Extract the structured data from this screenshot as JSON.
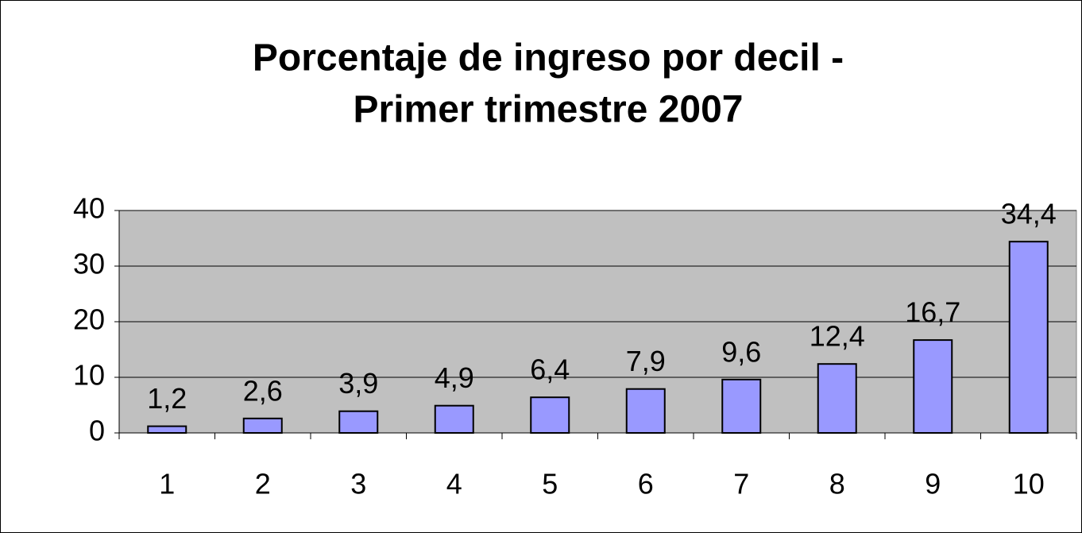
{
  "chart_data": {
    "type": "bar",
    "title": [
      "Porcentaje de ingreso por decil -",
      "Primer trimestre 2007"
    ],
    "categories": [
      "1",
      "2",
      "3",
      "4",
      "5",
      "6",
      "7",
      "8",
      "9",
      "10"
    ],
    "values": [
      1.2,
      2.6,
      3.9,
      4.9,
      6.4,
      7.9,
      9.6,
      12.4,
      16.7,
      34.4
    ],
    "value_labels": [
      "1,2",
      "2,6",
      "3,9",
      "4,9",
      "6,4",
      "7,9",
      "9,6",
      "12,4",
      "16,7",
      "34,4"
    ],
    "color": "#9999ff",
    "ylim": [
      0,
      40
    ],
    "yticks": [
      0,
      10,
      20,
      30,
      40
    ],
    "grid": true
  }
}
